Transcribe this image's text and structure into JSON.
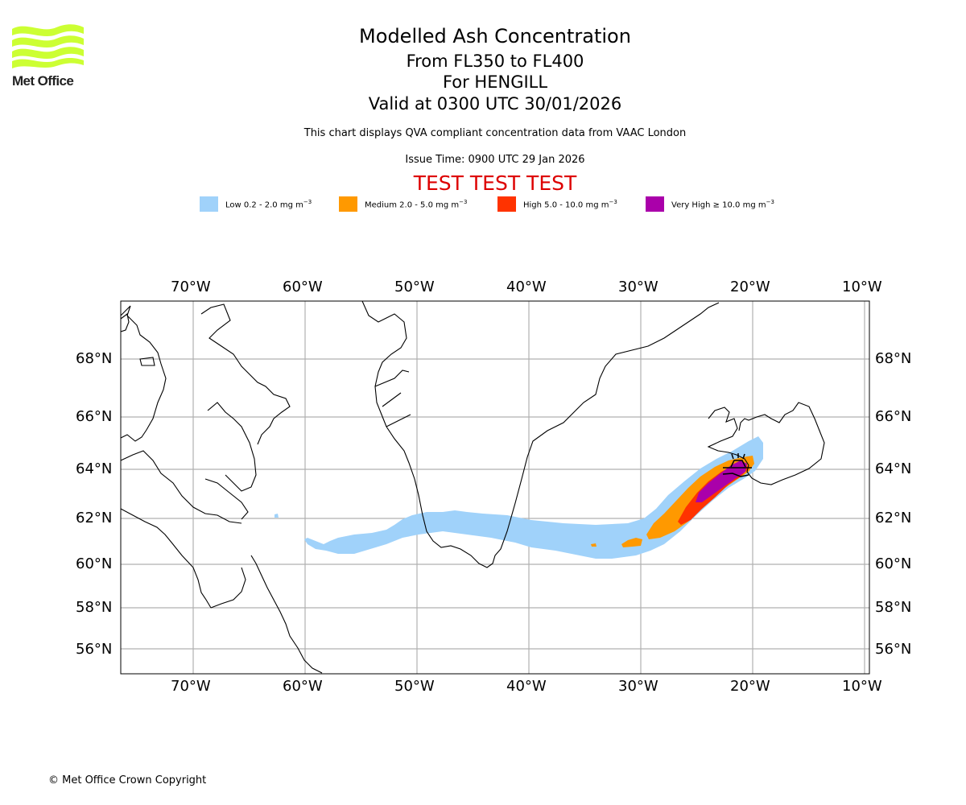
{
  "header": {
    "title": "Modelled Ash Concentration",
    "flight_levels": "From FL350 to FL400",
    "volcano_line": "For HENGILL",
    "valid_time": "Valid at 0300 UTC 30/01/2026",
    "description": "This chart displays QVA compliant concentration data from VAAC London",
    "issue_time": "Issue Time: 0900 UTC 29 Jan 2026",
    "test_banner": "TEST TEST TEST"
  },
  "logo": {
    "text": "Met Office",
    "color": "#ccff33"
  },
  "legend": [
    {
      "label": "Low 0.2 - 2.0 mg m",
      "unit_exp": "−3",
      "color": "#a0d2fa"
    },
    {
      "label": "Medium 2.0 - 5.0 mg m",
      "unit_exp": "−3",
      "color": "#ff9900"
    },
    {
      "label": "High 5.0 - 10.0 mg m",
      "unit_exp": "−3",
      "color": "#ff3300"
    },
    {
      "label": "Very High ≥ 10.0 mg m",
      "unit_exp": "−3",
      "color": "#aa00aa"
    }
  ],
  "map": {
    "volcano": {
      "name": "HENGILL",
      "lon": -21.3,
      "lat": 64.1,
      "icon": "volcano-icon"
    },
    "lon_ticks": [
      "70°W",
      "60°W",
      "50°W",
      "40°W",
      "30°W",
      "20°W",
      "10°W"
    ],
    "lat_ticks": [
      "68°N",
      "66°N",
      "64°N",
      "62°N",
      "60°N",
      "58°N",
      "56°N"
    ],
    "lon_values": [
      -70,
      -60,
      -50,
      -40,
      -30,
      -20,
      -10
    ],
    "lat_values": [
      68,
      66,
      64,
      62,
      60,
      58,
      56
    ],
    "extent": {
      "lon_min": -76.5,
      "lon_max": -9.5,
      "lat_min": 55,
      "lat_max": 70
    },
    "grid": true,
    "coastline_color": "#000000",
    "grid_color": "#b0b0b0"
  },
  "footer": {
    "copyright": "© Met Office Crown Copyright"
  }
}
